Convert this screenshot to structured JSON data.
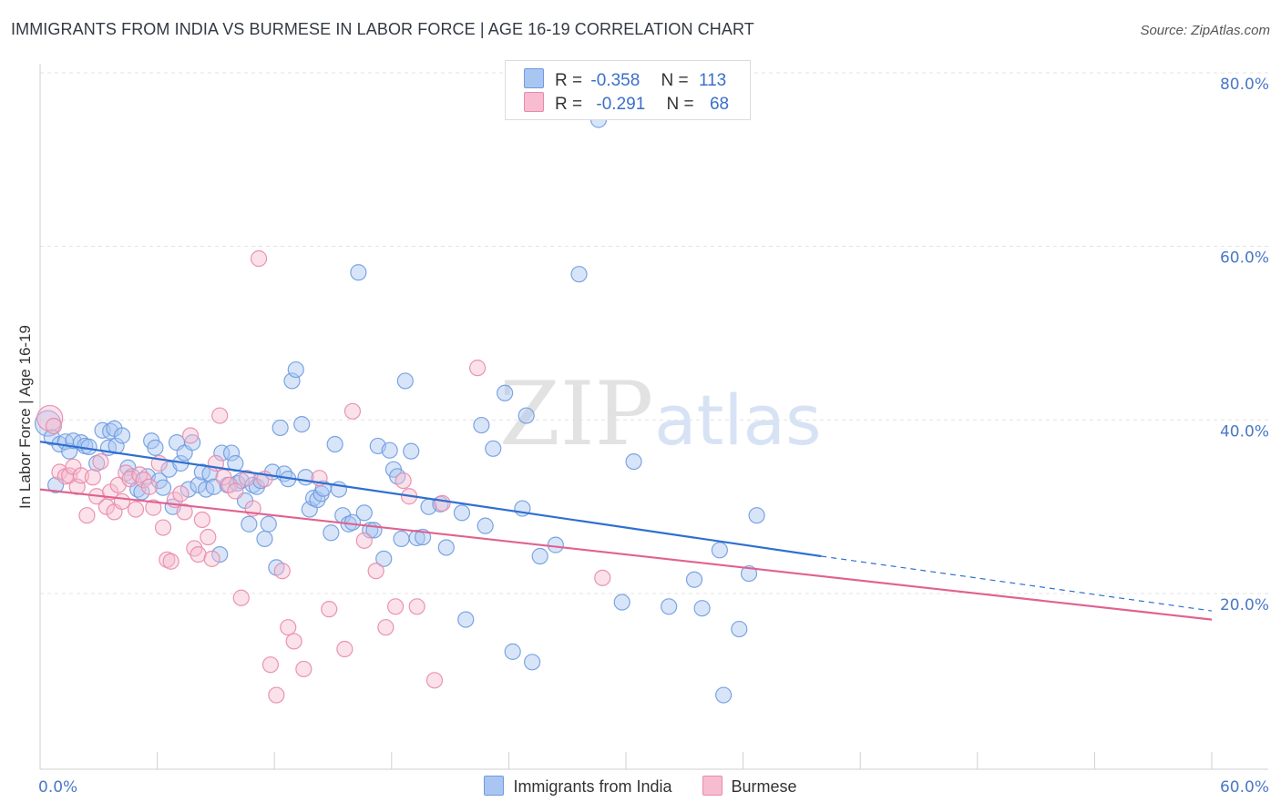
{
  "title": "IMMIGRANTS FROM INDIA VS BURMESE IN LABOR FORCE | AGE 16-19 CORRELATION CHART",
  "source": "Source: ZipAtlas.com",
  "watermark": {
    "zip": "ZIP",
    "atlas": "atlas"
  },
  "legend": {
    "r_label": "R =",
    "n_label": "N =",
    "rows": [
      {
        "r": "-0.358",
        "n": "113",
        "color": "#a9c6f2",
        "border": "#6e9be0"
      },
      {
        "r": "-0.291",
        "n": "68",
        "color": "#f7bcd0",
        "border": "#e88aaa"
      }
    ]
  },
  "bottom_legend": [
    {
      "label": "Immigrants from India",
      "color": "#a9c6f2",
      "border": "#6e9be0"
    },
    {
      "label": "Burmese",
      "color": "#f7bcd0",
      "border": "#e88aaa"
    }
  ],
  "chart_data": {
    "type": "scatter",
    "title": "IMMIGRANTS FROM INDIA VS BURMESE IN LABOR FORCE | AGE 16-19 CORRELATION CHART",
    "xlabel": "",
    "ylabel": "In Labor Force | Age 16-19",
    "xlim": [
      0,
      60
    ],
    "ylim": [
      0,
      80
    ],
    "x_tick_labels": [
      "0.0%",
      "60.0%"
    ],
    "y_ticks": [
      20,
      40,
      60,
      80
    ],
    "y_tick_labels": [
      "20.0%",
      "40.0%",
      "60.0%",
      "80.0%"
    ],
    "grid": "horizontal dashed",
    "legend_position": "top-center",
    "series": [
      {
        "name": "Immigrants from India",
        "color": "#6e9be0",
        "fill": "#a9c6f2",
        "trend": {
          "x0": 0,
          "y0": 37.5,
          "x1": 40,
          "y1": 24.3,
          "dash_to_x": 60,
          "dash_to_y": 18.0,
          "color": "#2f6fd1"
        },
        "points": [
          [
            0.4,
            39.6
          ],
          [
            0.6,
            38.0
          ],
          [
            0.8,
            32.5
          ],
          [
            1.0,
            37.2
          ],
          [
            1.3,
            37.5
          ],
          [
            1.5,
            36.4
          ],
          [
            1.7,
            37.6
          ],
          [
            2.1,
            37.4
          ],
          [
            2.3,
            37.0
          ],
          [
            2.5,
            36.9
          ],
          [
            2.9,
            35.0
          ],
          [
            3.2,
            38.8
          ],
          [
            3.5,
            36.8
          ],
          [
            3.6,
            38.7
          ],
          [
            3.8,
            39.0
          ],
          [
            3.9,
            37.0
          ],
          [
            4.2,
            38.2
          ],
          [
            4.5,
            34.5
          ],
          [
            4.7,
            33.5
          ],
          [
            5.0,
            32.0
          ],
          [
            5.2,
            31.7
          ],
          [
            5.5,
            33.5
          ],
          [
            5.7,
            37.6
          ],
          [
            5.9,
            36.8
          ],
          [
            6.1,
            33.0
          ],
          [
            6.3,
            32.2
          ],
          [
            6.6,
            34.3
          ],
          [
            6.8,
            30.0
          ],
          [
            7.0,
            37.4
          ],
          [
            7.2,
            35.0
          ],
          [
            7.4,
            36.2
          ],
          [
            7.6,
            32.0
          ],
          [
            7.8,
            37.4
          ],
          [
            8.1,
            32.5
          ],
          [
            8.3,
            34.0
          ],
          [
            8.5,
            32.0
          ],
          [
            8.7,
            33.8
          ],
          [
            8.9,
            32.3
          ],
          [
            9.2,
            24.5
          ],
          [
            9.3,
            36.2
          ],
          [
            9.6,
            32.5
          ],
          [
            9.8,
            36.2
          ],
          [
            10.0,
            35.0
          ],
          [
            10.1,
            32.7
          ],
          [
            10.3,
            33.0
          ],
          [
            10.5,
            30.7
          ],
          [
            10.7,
            28.0
          ],
          [
            10.9,
            32.5
          ],
          [
            11.1,
            32.3
          ],
          [
            11.3,
            33.0
          ],
          [
            11.5,
            26.3
          ],
          [
            11.7,
            28.0
          ],
          [
            11.9,
            34.0
          ],
          [
            12.1,
            23.0
          ],
          [
            12.3,
            39.1
          ],
          [
            12.5,
            33.8
          ],
          [
            12.7,
            33.2
          ],
          [
            12.9,
            44.5
          ],
          [
            13.1,
            45.8
          ],
          [
            13.4,
            39.5
          ],
          [
            13.6,
            33.4
          ],
          [
            13.8,
            29.7
          ],
          [
            14.0,
            31.0
          ],
          [
            14.2,
            30.8
          ],
          [
            14.4,
            31.5
          ],
          [
            14.5,
            32.1
          ],
          [
            14.9,
            27.0
          ],
          [
            15.1,
            37.2
          ],
          [
            15.3,
            32.0
          ],
          [
            15.5,
            29.0
          ],
          [
            15.8,
            28.0
          ],
          [
            16.0,
            28.2
          ],
          [
            16.3,
            57.0
          ],
          [
            16.6,
            29.3
          ],
          [
            16.9,
            27.3
          ],
          [
            17.1,
            27.3
          ],
          [
            17.3,
            37.0
          ],
          [
            17.6,
            24.0
          ],
          [
            17.9,
            36.5
          ],
          [
            18.1,
            34.3
          ],
          [
            18.3,
            33.5
          ],
          [
            18.5,
            26.3
          ],
          [
            18.7,
            44.5
          ],
          [
            19.0,
            36.4
          ],
          [
            19.3,
            26.4
          ],
          [
            19.6,
            26.5
          ],
          [
            19.9,
            30.0
          ],
          [
            20.5,
            30.3
          ],
          [
            20.8,
            25.3
          ],
          [
            21.6,
            29.3
          ],
          [
            21.8,
            17.0
          ],
          [
            22.6,
            39.4
          ],
          [
            22.8,
            27.8
          ],
          [
            23.2,
            36.7
          ],
          [
            23.8,
            43.1
          ],
          [
            24.2,
            13.3
          ],
          [
            24.7,
            29.8
          ],
          [
            24.9,
            40.5
          ],
          [
            25.2,
            12.1
          ],
          [
            25.6,
            24.3
          ],
          [
            26.4,
            25.6
          ],
          [
            27.6,
            56.8
          ],
          [
            28.6,
            74.6
          ],
          [
            29.8,
            19.0
          ],
          [
            30.4,
            35.2
          ],
          [
            32.2,
            18.5
          ],
          [
            33.5,
            21.6
          ],
          [
            33.9,
            18.3
          ],
          [
            35.0,
            8.3
          ],
          [
            34.8,
            25.0
          ],
          [
            35.8,
            15.9
          ],
          [
            36.3,
            22.3
          ],
          [
            36.7,
            29.0
          ]
        ]
      },
      {
        "name": "Burmese",
        "color": "#e88aaa",
        "fill": "#f7bcd0",
        "trend": {
          "x0": 0,
          "y0": 32.0,
          "x1": 60,
          "y1": 17.0,
          "color": "#e0628f"
        },
        "points": [
          [
            0.5,
            40.2
          ],
          [
            0.7,
            39.3
          ],
          [
            1.0,
            34.0
          ],
          [
            1.3,
            33.5
          ],
          [
            1.5,
            33.6
          ],
          [
            1.7,
            34.6
          ],
          [
            1.9,
            32.3
          ],
          [
            2.1,
            33.6
          ],
          [
            2.4,
            29.0
          ],
          [
            2.7,
            33.4
          ],
          [
            2.9,
            31.2
          ],
          [
            3.1,
            35.2
          ],
          [
            3.4,
            30.0
          ],
          [
            3.6,
            31.7
          ],
          [
            3.8,
            29.4
          ],
          [
            4.0,
            32.5
          ],
          [
            4.2,
            30.6
          ],
          [
            4.4,
            33.9
          ],
          [
            4.6,
            33.2
          ],
          [
            4.9,
            29.7
          ],
          [
            5.1,
            33.7
          ],
          [
            5.3,
            33.1
          ],
          [
            5.6,
            32.3
          ],
          [
            5.8,
            29.9
          ],
          [
            6.1,
            35.0
          ],
          [
            6.3,
            27.6
          ],
          [
            6.5,
            23.9
          ],
          [
            6.7,
            23.7
          ],
          [
            6.9,
            30.8
          ],
          [
            7.2,
            31.5
          ],
          [
            7.4,
            29.4
          ],
          [
            7.7,
            38.2
          ],
          [
            7.9,
            25.2
          ],
          [
            8.1,
            24.5
          ],
          [
            8.3,
            28.5
          ],
          [
            8.6,
            26.5
          ],
          [
            8.8,
            24.0
          ],
          [
            9.0,
            35.0
          ],
          [
            9.2,
            40.5
          ],
          [
            9.4,
            33.4
          ],
          [
            9.7,
            32.5
          ],
          [
            10.0,
            31.8
          ],
          [
            10.3,
            19.5
          ],
          [
            10.6,
            33.3
          ],
          [
            10.9,
            29.8
          ],
          [
            11.2,
            58.6
          ],
          [
            11.5,
            33.2
          ],
          [
            11.8,
            11.8
          ],
          [
            12.1,
            8.3
          ],
          [
            12.4,
            22.6
          ],
          [
            12.7,
            16.1
          ],
          [
            13.0,
            14.5
          ],
          [
            13.5,
            11.3
          ],
          [
            14.3,
            33.3
          ],
          [
            14.8,
            18.2
          ],
          [
            15.6,
            13.6
          ],
          [
            16.0,
            41.0
          ],
          [
            16.6,
            26.1
          ],
          [
            17.2,
            22.6
          ],
          [
            17.7,
            16.1
          ],
          [
            18.2,
            18.5
          ],
          [
            18.6,
            33.0
          ],
          [
            18.9,
            31.2
          ],
          [
            19.3,
            18.5
          ],
          [
            20.2,
            10.0
          ],
          [
            20.6,
            30.4
          ],
          [
            22.4,
            46.0
          ],
          [
            28.8,
            21.8
          ]
        ]
      }
    ]
  }
}
